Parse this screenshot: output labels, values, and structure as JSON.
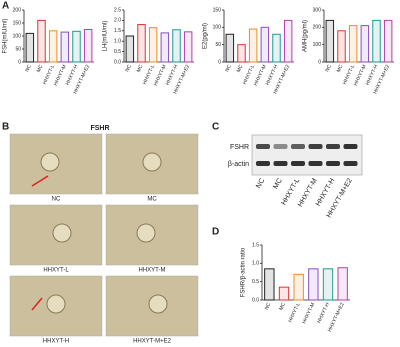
{
  "labels": [
    "A",
    "B",
    "C",
    "D"
  ],
  "chart_data": [
    {
      "type": "bar",
      "ylabel": "FSH(mIU/ml)",
      "categories": [
        "NC",
        "MC",
        "HHXYT-L",
        "HHXYT-M",
        "HHXYT-H",
        "HHXYT-M+E2"
      ],
      "values": [
        110,
        160,
        120,
        115,
        118,
        125
      ],
      "colors": [
        "#222222",
        "#e0322f",
        "#f08a24",
        "#8a4fc4",
        "#1f9a8f",
        "#b43fa8"
      ],
      "ylim": [
        0,
        200
      ],
      "yticks": [
        0,
        50,
        100,
        150,
        200
      ]
    },
    {
      "type": "bar",
      "ylabel": "LH(mIU/ml)",
      "categories": [
        "NC",
        "MC",
        "HHXYT-L",
        "HHXYT-M",
        "HHXYT-H",
        "HHXYT-M+E2"
      ],
      "values": [
        1.25,
        1.8,
        1.65,
        1.4,
        1.55,
        1.45
      ],
      "colors": [
        "#222222",
        "#e0322f",
        "#f08a24",
        "#8a4fc4",
        "#1f9a8f",
        "#b43fa8"
      ],
      "ylim": [
        0,
        2.5
      ],
      "yticks": [
        {
          "value": 0,
          "label": "0.0"
        },
        0.5,
        {
          "value": 1,
          "label": "1.0"
        },
        1.5,
        {
          "value": 2,
          "label": "2.0"
        },
        2.5
      ]
    },
    {
      "type": "bar",
      "ylabel": "E2(pg/ml)",
      "categories": [
        "NC",
        "MC",
        "HHXYT-L",
        "HHXYT-M",
        "HHXYT-H",
        "HHXYT-M+E2"
      ],
      "values": [
        80,
        50,
        95,
        100,
        80,
        120
      ],
      "colors": [
        "#222222",
        "#e0322f",
        "#f08a24",
        "#8a4fc4",
        "#1f9a8f",
        "#b43fa8"
      ],
      "ylim": [
        0,
        150
      ],
      "yticks": [
        0,
        50,
        100,
        150
      ]
    },
    {
      "type": "bar",
      "ylabel": "AMH(pg/ml)",
      "categories": [
        "NC",
        "MC",
        "HHXYT-L",
        "HHXYT-M",
        "HHXYT-H",
        "HHXYT-M+E2"
      ],
      "values": [
        240,
        180,
        210,
        210,
        240,
        240
      ],
      "colors": [
        "#222222",
        "#e0322f",
        "#f08a24",
        "#8a4fc4",
        "#1f9a8f",
        "#b43fa8"
      ],
      "ylim": [
        0,
        300
      ],
      "yticks": [
        0,
        100,
        200,
        300
      ]
    },
    {
      "type": "bar",
      "ylabel": "FSHR/β-actin ratio",
      "categories": [
        "NC",
        "MC",
        "HHXYT-L",
        "HHXYT-M",
        "HHXYT-H",
        "HHXYT-M+E2"
      ],
      "values": [
        0.85,
        0.35,
        0.7,
        0.85,
        0.85,
        0.88
      ],
      "colors": [
        "#222222",
        "#e0322f",
        "#f08a24",
        "#8a4fc4",
        "#1f9a8f",
        "#b43fa8"
      ],
      "ylim": [
        0,
        1.5
      ],
      "yticks": [
        {
          "value": 0,
          "label": "0.0"
        },
        0.5,
        {
          "value": 1,
          "label": "1.0"
        },
        1.5
      ]
    }
  ],
  "histology": {
    "title": "FSHR",
    "captions": [
      "NC",
      "MC",
      "HHXYT-L",
      "HHXYT-M",
      "HHXYT-H",
      "HHXYT-M+E2"
    ]
  },
  "blot": {
    "bands": [
      "FSHR",
      "β-actin"
    ],
    "lanes": [
      "NC",
      "MC",
      "HHXYT-L",
      "HHXYT-M",
      "HHXYT-H",
      "HHXYT-M+E2"
    ]
  }
}
